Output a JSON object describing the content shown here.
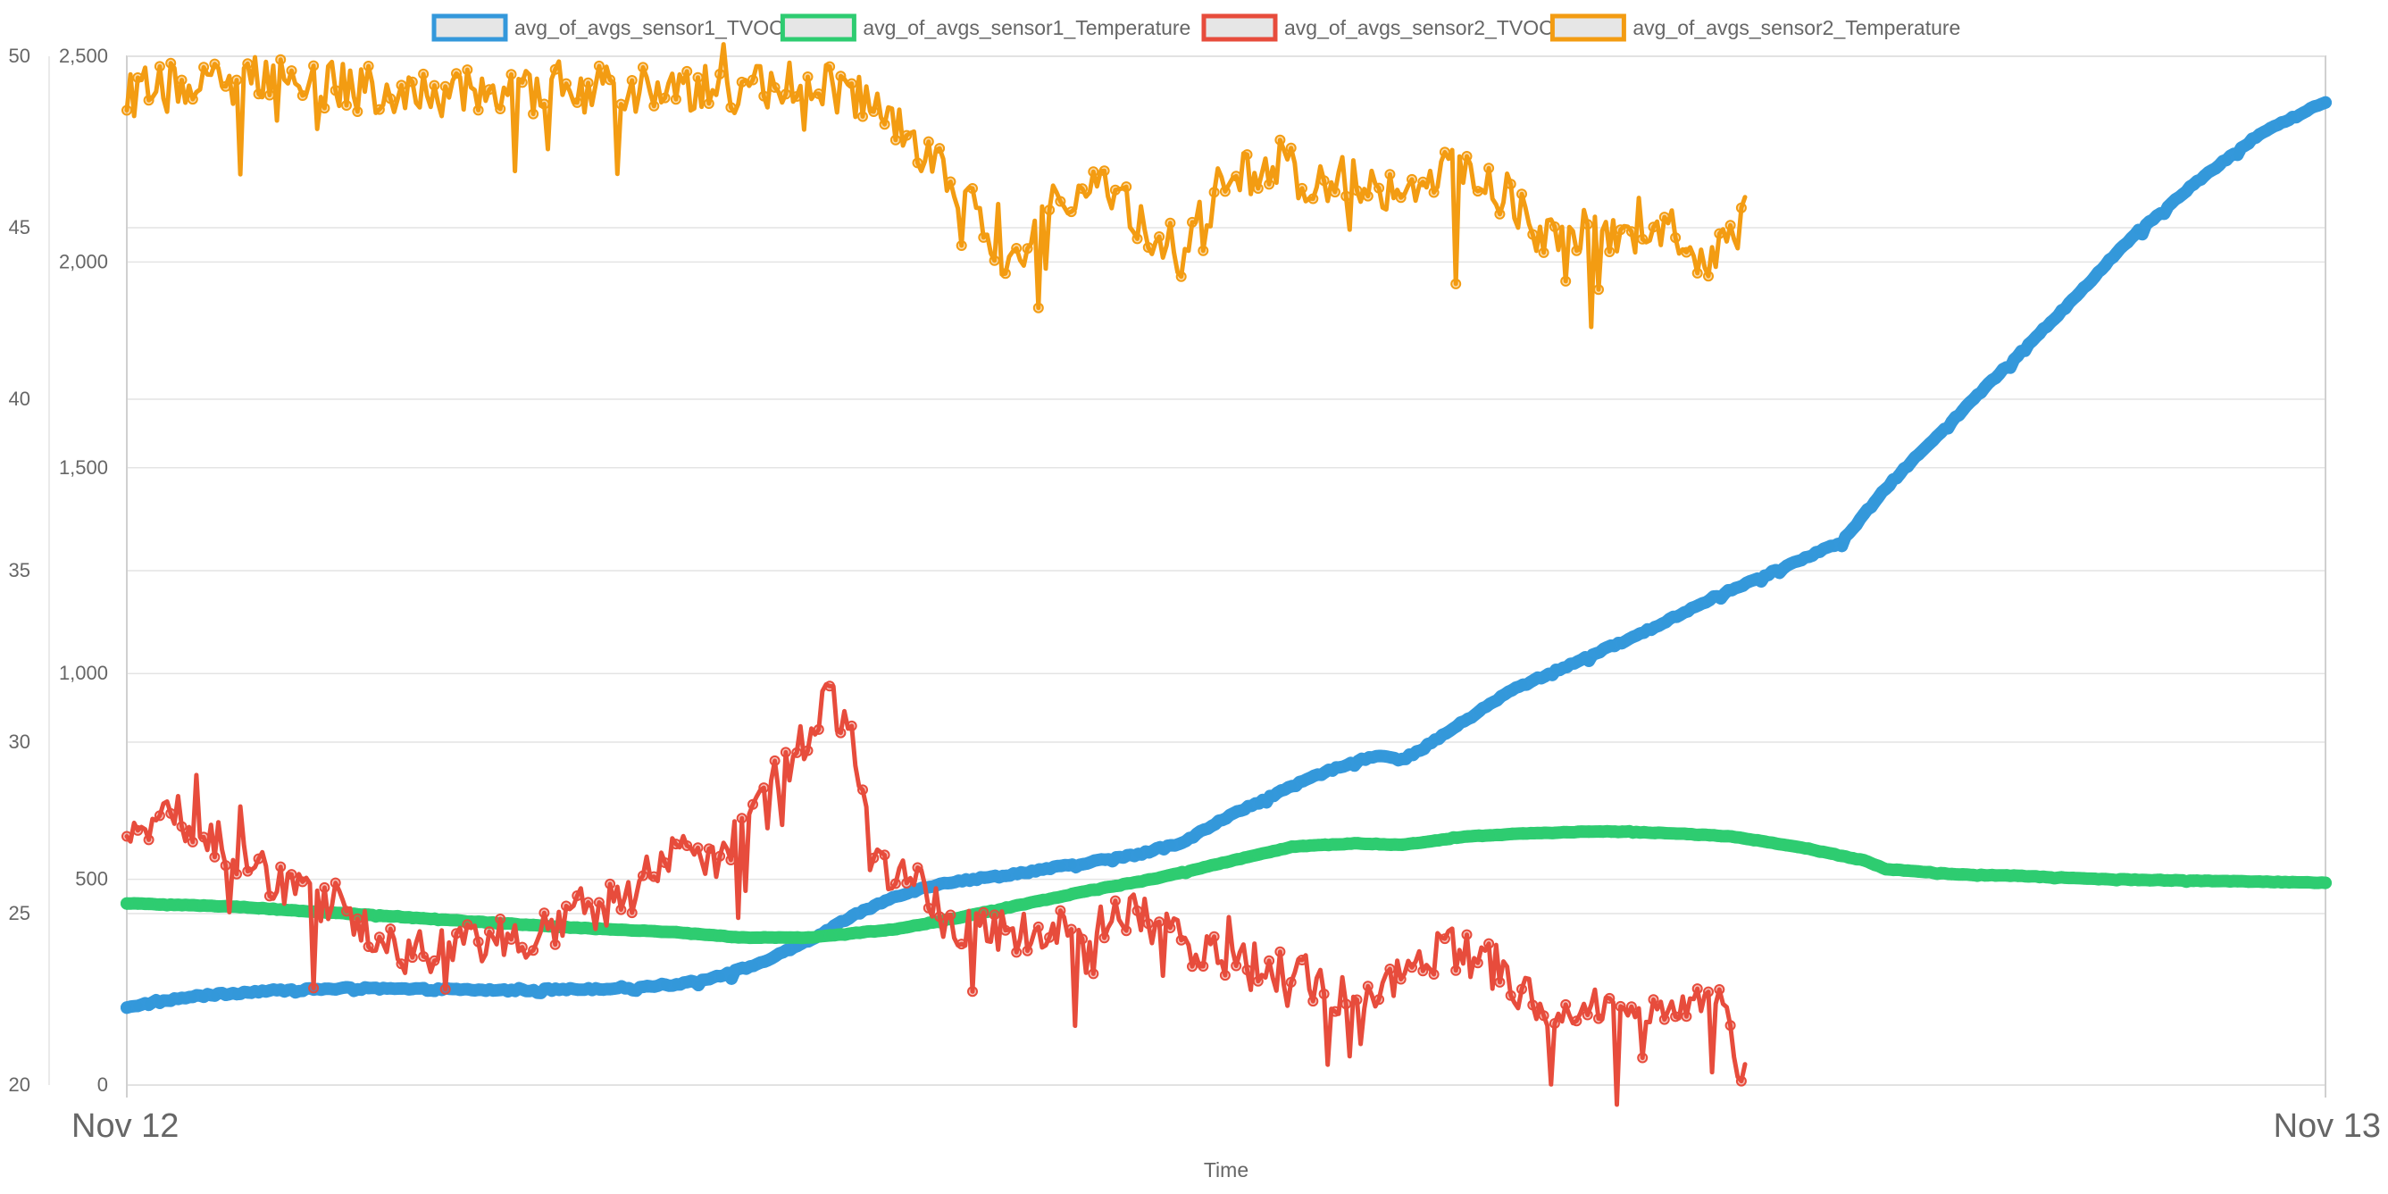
{
  "chart_data": {
    "type": "line",
    "xlabel": "Time",
    "x_ticks": [
      "Nov 12",
      "Nov 13"
    ],
    "y_left_outer": {
      "ticks": [
        "20",
        "25",
        "30",
        "35",
        "40",
        "45",
        "50"
      ],
      "range": [
        20,
        50
      ]
    },
    "y_left_inner": {
      "ticks": [
        "0",
        "500",
        "1,000",
        "1,500",
        "2,000",
        "2,500"
      ],
      "range": [
        0,
        2500
      ]
    },
    "grid": true,
    "legend_position": "top",
    "series": [
      {
        "name": "avg_of_avgs_sensor1_TVOC",
        "color": "#3498db",
        "axis": "inner",
        "end_fraction": 1.0,
        "noise": 6,
        "points": [
          [
            0.0,
            190
          ],
          [
            0.03,
            215
          ],
          [
            0.06,
            228
          ],
          [
            0.1,
            235
          ],
          [
            0.14,
            232
          ],
          [
            0.18,
            230
          ],
          [
            0.22,
            235
          ],
          [
            0.25,
            245
          ],
          [
            0.27,
            265
          ],
          [
            0.29,
            300
          ],
          [
            0.31,
            350
          ],
          [
            0.33,
            410
          ],
          [
            0.35,
            460
          ],
          [
            0.37,
            490
          ],
          [
            0.4,
            510
          ],
          [
            0.43,
            535
          ],
          [
            0.46,
            560
          ],
          [
            0.48,
            590
          ],
          [
            0.5,
            650
          ],
          [
            0.52,
            700
          ],
          [
            0.54,
            750
          ],
          [
            0.56,
            790
          ],
          [
            0.57,
            800
          ],
          [
            0.58,
            790
          ],
          [
            0.59,
            820
          ],
          [
            0.61,
            890
          ],
          [
            0.63,
            960
          ],
          [
            0.66,
            1030
          ],
          [
            0.69,
            1100
          ],
          [
            0.72,
            1180
          ],
          [
            0.75,
            1250
          ],
          [
            0.78,
            1320
          ],
          [
            0.8,
            1450
          ],
          [
            0.82,
            1560
          ],
          [
            0.85,
            1720
          ],
          [
            0.88,
            1880
          ],
          [
            0.91,
            2050
          ],
          [
            0.94,
            2190
          ],
          [
            0.97,
            2310
          ],
          [
            1.0,
            2390
          ]
        ]
      },
      {
        "name": "avg_of_avgs_sensor1_Temperature",
        "color": "#2ecc71",
        "axis": "outer",
        "end_fraction": 1.0,
        "noise": 0.02,
        "points": [
          [
            0.0,
            25.3
          ],
          [
            0.05,
            25.2
          ],
          [
            0.1,
            25.0
          ],
          [
            0.15,
            24.8
          ],
          [
            0.2,
            24.6
          ],
          [
            0.25,
            24.45
          ],
          [
            0.28,
            24.3
          ],
          [
            0.31,
            24.3
          ],
          [
            0.35,
            24.55
          ],
          [
            0.38,
            24.9
          ],
          [
            0.41,
            25.3
          ],
          [
            0.44,
            25.7
          ],
          [
            0.47,
            26.05
          ],
          [
            0.5,
            26.5
          ],
          [
            0.53,
            26.95
          ],
          [
            0.56,
            27.05
          ],
          [
            0.58,
            27.0
          ],
          [
            0.61,
            27.25
          ],
          [
            0.64,
            27.35
          ],
          [
            0.67,
            27.4
          ],
          [
            0.7,
            27.35
          ],
          [
            0.73,
            27.25
          ],
          [
            0.76,
            26.95
          ],
          [
            0.79,
            26.55
          ],
          [
            0.8,
            26.3
          ],
          [
            0.83,
            26.15
          ],
          [
            0.86,
            26.1
          ],
          [
            0.9,
            26.0
          ],
          [
            0.95,
            25.95
          ],
          [
            1.0,
            25.9
          ]
        ]
      },
      {
        "name": "avg_of_avgs_sensor2_TVOC",
        "color": "#e74c3c",
        "axis": "inner",
        "end_fraction": 0.736,
        "noise": 110,
        "points": [
          [
            0.0,
            640
          ],
          [
            0.02,
            660
          ],
          [
            0.035,
            620
          ],
          [
            0.05,
            560
          ],
          [
            0.065,
            510
          ],
          [
            0.08,
            470
          ],
          [
            0.09,
            440
          ],
          [
            0.1,
            420
          ],
          [
            0.11,
            370
          ],
          [
            0.125,
            320
          ],
          [
            0.14,
            330
          ],
          [
            0.16,
            340
          ],
          [
            0.17,
            370
          ],
          [
            0.18,
            350
          ],
          [
            0.19,
            380
          ],
          [
            0.21,
            420
          ],
          [
            0.23,
            470
          ],
          [
            0.24,
            550
          ],
          [
            0.26,
            550
          ],
          [
            0.27,
            560
          ],
          [
            0.28,
            640
          ],
          [
            0.29,
            730
          ],
          [
            0.3,
            780
          ],
          [
            0.31,
            850
          ],
          [
            0.315,
            920
          ],
          [
            0.32,
            935
          ],
          [
            0.325,
            890
          ],
          [
            0.33,
            820
          ],
          [
            0.335,
            680
          ],
          [
            0.34,
            560
          ],
          [
            0.35,
            520
          ],
          [
            0.36,
            480
          ],
          [
            0.37,
            420
          ],
          [
            0.38,
            380
          ],
          [
            0.4,
            370
          ],
          [
            0.42,
            390
          ],
          [
            0.44,
            400
          ],
          [
            0.46,
            410
          ],
          [
            0.5,
            290
          ],
          [
            0.53,
            280
          ],
          [
            0.56,
            200
          ],
          [
            0.6,
            330
          ],
          [
            0.62,
            300
          ],
          [
            0.65,
            150
          ],
          [
            0.68,
            200
          ],
          [
            0.7,
            150
          ],
          [
            0.72,
            220
          ],
          [
            0.73,
            130
          ],
          [
            0.736,
            0
          ]
        ]
      },
      {
        "name": "avg_of_avgs_sensor2_Temperature",
        "color": "#f39c12",
        "axis": "outer",
        "end_fraction": 0.736,
        "noise": 1.4,
        "points": [
          [
            0.0,
            48.9
          ],
          [
            0.02,
            49.1
          ],
          [
            0.05,
            49.3
          ],
          [
            0.08,
            49.2
          ],
          [
            0.1,
            49.1
          ],
          [
            0.13,
            48.9
          ],
          [
            0.16,
            49.0
          ],
          [
            0.19,
            49.0
          ],
          [
            0.22,
            49.1
          ],
          [
            0.25,
            48.9
          ],
          [
            0.28,
            49.0
          ],
          [
            0.3,
            49.3
          ],
          [
            0.31,
            49.5
          ],
          [
            0.32,
            49.1
          ],
          [
            0.34,
            48.5
          ],
          [
            0.36,
            47.4
          ],
          [
            0.38,
            46.0
          ],
          [
            0.4,
            43.7
          ],
          [
            0.42,
            45.5
          ],
          [
            0.44,
            46.7
          ],
          [
            0.46,
            45.2
          ],
          [
            0.48,
            44.2
          ],
          [
            0.5,
            46.5
          ],
          [
            0.52,
            46.8
          ],
          [
            0.54,
            46.3
          ],
          [
            0.56,
            46.4
          ],
          [
            0.58,
            46.0
          ],
          [
            0.6,
            47.0
          ],
          [
            0.61,
            46.5
          ],
          [
            0.62,
            46.3
          ],
          [
            0.63,
            45.8
          ],
          [
            0.64,
            45.0
          ],
          [
            0.66,
            44.8
          ],
          [
            0.68,
            45.0
          ],
          [
            0.7,
            44.9
          ],
          [
            0.71,
            44.6
          ],
          [
            0.72,
            44.0
          ],
          [
            0.73,
            45.0
          ],
          [
            0.736,
            45.2
          ]
        ]
      }
    ]
  }
}
